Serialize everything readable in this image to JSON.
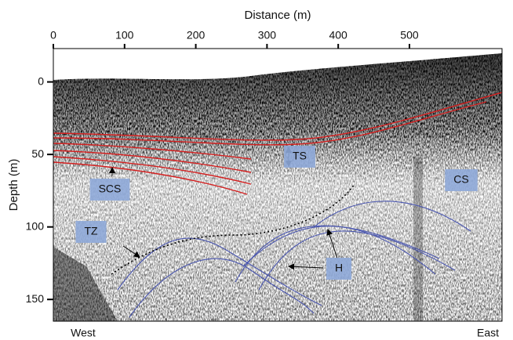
{
  "chart_data": {
    "type": "profile",
    "x_label": "Distance (m)",
    "y_label": "Depth (m)",
    "xlim": [
      0,
      630
    ],
    "xticks": [
      0,
      100,
      200,
      300,
      400,
      500
    ],
    "ylim": [
      165,
      -23
    ],
    "yticks": [
      0,
      50,
      100,
      150
    ],
    "annotations": [
      "TS",
      "SCS",
      "CS",
      "TZ",
      "H",
      "West",
      "East"
    ]
  }
}
